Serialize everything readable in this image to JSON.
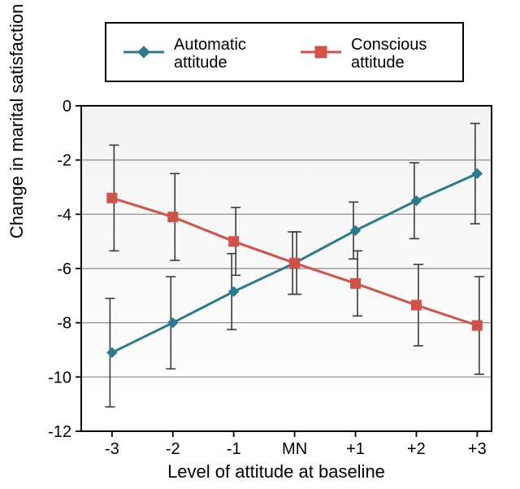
{
  "chart": {
    "type": "line-with-errorbars",
    "background_color": "#ffffff",
    "border_color": "#000000",
    "border_width": 2,
    "panel_gradient": {
      "top": "#f3f3f3",
      "bottom": "#ffffff"
    },
    "grid_color": "#868686",
    "grid_width": 1.2,
    "x": {
      "categories": [
        "-3",
        "-2",
        "-1",
        "MN",
        "+1",
        "+2",
        "+3"
      ],
      "title": "Level of attitude at baseline",
      "tick_fontsize": 20,
      "title_fontsize": 22
    },
    "y": {
      "title": "Change in marital satisfaction",
      "min": -12,
      "max": 0,
      "tick_step": 2,
      "ticks": [
        0,
        -2,
        -4,
        -6,
        -8,
        -10,
        -12
      ],
      "tick_fontsize": 20,
      "title_fontsize": 22
    },
    "series": [
      {
        "name": "Automatic attitude",
        "color": "#2b7a8f",
        "marker": "diamond",
        "marker_size": 12,
        "line_width": 3,
        "errorbar_color": "#3a3a3a",
        "errorbar_width": 1.6,
        "cap_width": 12,
        "points": [
          {
            "y": -9.1,
            "err": 2.0
          },
          {
            "y": -8.0,
            "err": 1.7
          },
          {
            "y": -6.85,
            "err": 1.4
          },
          {
            "y": -5.8,
            "err": 1.15
          },
          {
            "y": -4.6,
            "err": 1.05
          },
          {
            "y": -3.5,
            "err": 1.4
          },
          {
            "y": -2.5,
            "err": 1.85
          }
        ]
      },
      {
        "name": "Conscious attitude",
        "color": "#d05248",
        "marker": "square",
        "marker_size": 12,
        "line_width": 3,
        "errorbar_color": "#3a3a3a",
        "errorbar_width": 1.6,
        "cap_width": 12,
        "points": [
          {
            "y": -3.4,
            "err": 1.95
          },
          {
            "y": -4.1,
            "err": 1.6
          },
          {
            "y": -5.0,
            "err": 1.25
          },
          {
            "y": -5.8,
            "err": 1.15
          },
          {
            "y": -6.55,
            "err": 1.2
          },
          {
            "y": -7.35,
            "err": 1.5
          },
          {
            "y": -8.1,
            "err": 1.8
          }
        ]
      }
    ],
    "legend": {
      "border_color": "#000000",
      "border_width": 2,
      "background": "#ffffff",
      "fontsize": 20,
      "items": [
        "Automatic attitude",
        "Conscious attitude"
      ]
    }
  }
}
